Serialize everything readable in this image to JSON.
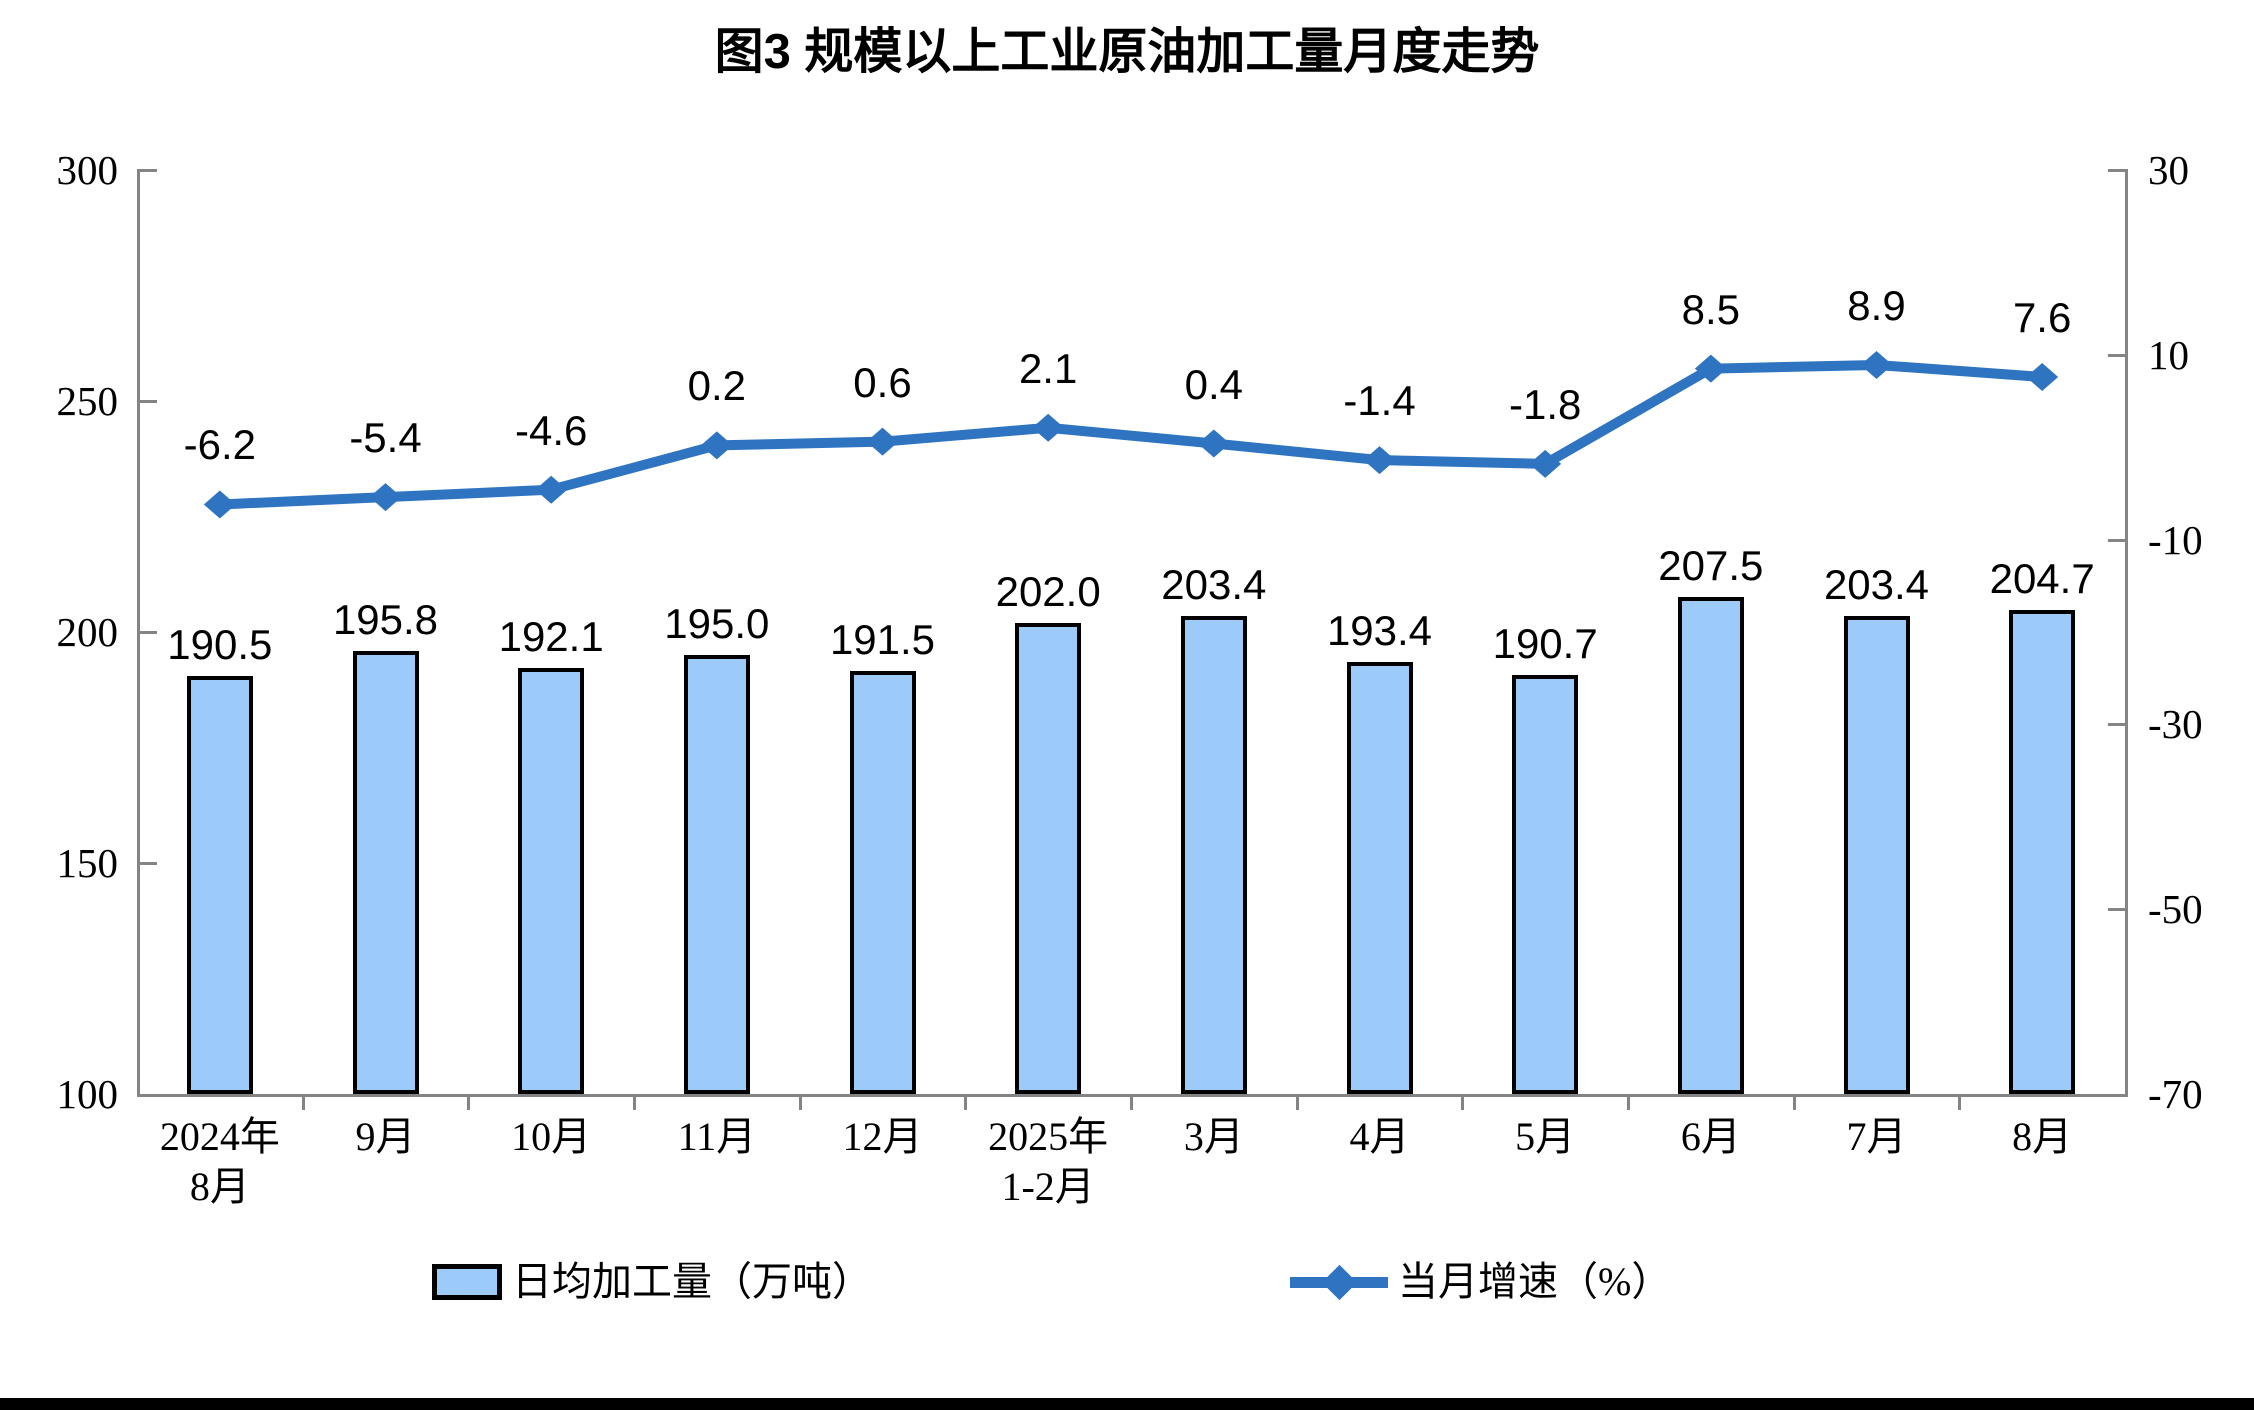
{
  "chart_data": {
    "type": "bar+line",
    "title": "图3 规模以上工业原油加工量月度走势",
    "categories": [
      "2024年\n8月",
      "9月",
      "10月",
      "11月",
      "12月",
      "2025年\n1-2月",
      "3月",
      "4月",
      "5月",
      "6月",
      "7月",
      "8月"
    ],
    "series": [
      {
        "name": "日均加工量（万吨）",
        "type": "bar",
        "axis": "left",
        "values": [
          190.5,
          195.8,
          192.1,
          195.0,
          191.5,
          202.0,
          203.4,
          193.4,
          190.7,
          207.5,
          203.4,
          204.7
        ]
      },
      {
        "name": "当月增速（%）",
        "type": "line",
        "axis": "right",
        "values": [
          -6.2,
          -5.4,
          -4.6,
          0.2,
          0.6,
          2.1,
          0.4,
          -1.4,
          -1.8,
          8.5,
          8.9,
          7.6
        ]
      }
    ],
    "left_axis": {
      "min": 100,
      "max": 300,
      "ticks": [
        300,
        250,
        200,
        150,
        100
      ]
    },
    "right_axis": {
      "min": -70,
      "max": 30,
      "ticks": [
        30,
        10,
        -10,
        -30,
        -50,
        -70
      ]
    },
    "grid": false,
    "legend_position": "bottom",
    "colors": {
      "bar_fill": "#9CCBFA",
      "bar_border": "#000000",
      "line": "#2E74C1",
      "axis": "#848484",
      "text": "#000000"
    }
  }
}
